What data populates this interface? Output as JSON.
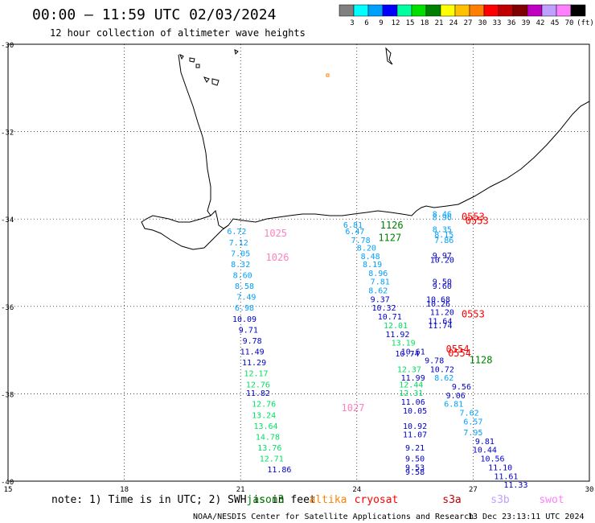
{
  "header": {
    "title": "00:00 – 11:59 UTC 02/03/2024",
    "subtitle": "12 hour collection of altimeter wave heights"
  },
  "legend": {
    "colors": [
      "#808080",
      "#00ffff",
      "#00a0ff",
      "#0000ff",
      "#00ffa0",
      "#00e000",
      "#008000",
      "#ffff00",
      "#ffc000",
      "#ff8000",
      "#ff0000",
      "#c00000",
      "#800000",
      "#c000c0",
      "#c0a0ff",
      "#ff80ff",
      "#000000"
    ],
    "labels": [
      "3",
      "6",
      "9",
      "12",
      "15",
      "18",
      "21",
      "24",
      "27",
      "30",
      "33",
      "36",
      "39",
      "42",
      "45",
      "70",
      "(ft)"
    ]
  },
  "axes": {
    "lat_labels": [
      "-30",
      "-32",
      "-34",
      "-36",
      "-38",
      "-40"
    ],
    "lon_labels": [
      "15",
      "18",
      "21",
      "24",
      "27",
      "30"
    ]
  },
  "tracks": [
    {
      "color": "#00a0ff",
      "points": [
        [
          "6.81",
          23.9,
          -34.2
        ],
        [
          "6.47",
          23.95,
          -34.35
        ],
        [
          "7.78",
          24.1,
          -34.55
        ],
        [
          "8.20",
          24.25,
          -34.72
        ],
        [
          "8.48",
          24.35,
          -34.92
        ],
        [
          "8.19",
          24.4,
          -35.1
        ],
        [
          "8.96",
          24.55,
          -35.3
        ],
        [
          "7.81",
          24.6,
          -35.5
        ],
        [
          "8.62",
          24.55,
          -35.7
        ]
      ]
    },
    {
      "color": "#00a0ff",
      "points": [
        [
          "6.72",
          20.9,
          -34.35
        ],
        [
          "7.12",
          20.95,
          -34.6
        ],
        [
          "7.05",
          21.0,
          -34.85
        ],
        [
          "8.32",
          21.0,
          -35.1
        ],
        [
          "8.60",
          21.05,
          -35.35
        ],
        [
          "8.58",
          21.1,
          -35.6
        ],
        [
          "7.49",
          21.15,
          -35.85
        ],
        [
          "6.98",
          21.1,
          -36.1
        ]
      ]
    },
    {
      "color": "#0000c8",
      "points": [
        [
          "10.09",
          21.1,
          -36.35
        ],
        [
          "9.71",
          21.2,
          -36.6
        ],
        [
          "9.78",
          21.3,
          -36.85
        ],
        [
          "11.49",
          21.3,
          -37.1
        ],
        [
          "11.29",
          21.35,
          -37.35
        ]
      ]
    },
    {
      "color": "#00e060",
      "points": [
        [
          "12.17",
          21.4,
          -37.6
        ],
        [
          "12.76",
          21.45,
          -37.85
        ]
      ]
    },
    {
      "color": "#0000c8",
      "points": [
        [
          "11.82",
          21.45,
          -38.05
        ]
      ]
    },
    {
      "color": "#00e060",
      "points": [
        [
          "12.76",
          21.6,
          -38.3
        ],
        [
          "13.24",
          21.6,
          -38.55
        ],
        [
          "13.64",
          21.65,
          -38.8
        ],
        [
          "14.78",
          21.7,
          -39.05
        ],
        [
          "13.76",
          21.75,
          -39.3
        ],
        [
          "12.71",
          21.8,
          -39.55
        ]
      ]
    },
    {
      "color": "#0000c8",
      "points": [
        [
          "11.86",
          22.0,
          -39.8
        ]
      ]
    },
    {
      "color": "#0000c8",
      "points": [
        [
          "9.37",
          24.6,
          -35.9
        ],
        [
          "10.32",
          24.7,
          -36.1
        ],
        [
          "10.71",
          24.85,
          -36.3
        ]
      ]
    },
    {
      "color": "#00e060",
      "points": [
        [
          "12.01",
          25.0,
          -36.5
        ]
      ]
    },
    {
      "color": "#0000c8",
      "points": [
        [
          "11.92",
          25.05,
          -36.7
        ]
      ]
    },
    {
      "color": "#00e060",
      "points": [
        [
          "13.19",
          25.2,
          -36.9
        ]
      ]
    },
    {
      "color": "#0000c8",
      "points": [
        [
          "10.74",
          25.3,
          -37.15
        ]
      ]
    },
    {
      "color": "#00e060",
      "points": [
        [
          "12.37",
          25.35,
          -37.5
        ],
        [
          "12.44",
          25.4,
          -37.85
        ],
        [
          "12.31",
          25.4,
          -38.05
        ]
      ]
    },
    {
      "color": "#0000c8",
      "points": [
        [
          "11.99",
          25.45,
          -37.7
        ],
        [
          "11.06",
          25.45,
          -38.25
        ],
        [
          "10.05",
          25.5,
          -38.45
        ]
      ]
    },
    {
      "color": "#0000c8",
      "points": [
        [
          "10.92",
          25.5,
          -38.8
        ],
        [
          "11.07",
          25.5,
          -39.0
        ],
        [
          "9.21",
          25.5,
          -39.3
        ],
        [
          "9.50",
          25.5,
          -39.55
        ],
        [
          "9.53",
          25.5,
          -39.75
        ],
        [
          "9.58",
          25.5,
          -39.85
        ]
      ]
    },
    {
      "color": "#00a0ff",
      "points": [
        [
          "8.46",
          26.2,
          -33.95
        ],
        [
          "8.96",
          26.2,
          -34.02
        ],
        [
          "8.35",
          26.2,
          -34.3
        ],
        [
          "8.15",
          26.25,
          -34.42
        ],
        [
          "7.86",
          26.25,
          -34.55
        ]
      ]
    },
    {
      "color": "#0000c8",
      "points": [
        [
          "9.97",
          26.2,
          -34.9
        ],
        [
          "10.20",
          26.2,
          -35.0
        ],
        [
          "9.50",
          26.2,
          -35.5
        ],
        [
          "9.60",
          26.2,
          -35.6
        ]
      ]
    },
    {
      "color": "#0000c8",
      "points": [
        [
          "10.68",
          26.1,
          -35.9
        ],
        [
          "10.26",
          26.1,
          -36.0
        ],
        [
          "11.20",
          26.2,
          -36.2
        ],
        [
          "11.64",
          26.15,
          -36.4
        ],
        [
          "11.74",
          26.15,
          -36.5
        ]
      ]
    },
    {
      "color": "#0000c8",
      "points": [
        [
          "10.61",
          25.45,
          -37.1
        ],
        [
          "9.78",
          26.0,
          -37.3
        ],
        [
          "10.72",
          26.2,
          -37.5
        ]
      ]
    },
    {
      "color": "#00a0ff",
      "points": [
        [
          "8.62",
          26.25,
          -37.7
        ]
      ]
    },
    {
      "color": "#0000c8",
      "points": [
        [
          "9.56",
          26.7,
          -37.9
        ],
        [
          "9.06",
          26.55,
          -38.1
        ]
      ]
    },
    {
      "color": "#00a0ff",
      "points": [
        [
          "6.81",
          26.5,
          -38.3
        ],
        [
          "7.62",
          26.9,
          -38.5
        ],
        [
          "6.57",
          27.0,
          -38.7
        ],
        [
          "7.95",
          27.0,
          -38.95
        ]
      ]
    },
    {
      "color": "#0000c8",
      "points": [
        [
          "9.81",
          27.3,
          -39.15
        ],
        [
          "10.44",
          27.3,
          -39.35
        ],
        [
          "10.56",
          27.5,
          -39.55
        ],
        [
          "11.10",
          27.7,
          -39.75
        ],
        [
          "11.61",
          27.85,
          -39.95
        ],
        [
          "11.33",
          28.1,
          -40.15
        ]
      ]
    }
  ],
  "pass_times": [
    {
      "text": "1025",
      "color": "#ff80c0",
      "lon": 21.9,
      "lat": -34.4
    },
    {
      "text": "1026",
      "color": "#ff80c0",
      "lon": 21.95,
      "lat": -34.95
    },
    {
      "text": "1027",
      "color": "#ff80c0",
      "lon": 23.9,
      "lat": -38.4
    },
    {
      "text": "1126",
      "color": "#008000",
      "lon": 24.9,
      "lat": -34.22
    },
    {
      "text": "1127",
      "color": "#008000",
      "lon": 24.85,
      "lat": -34.5
    },
    {
      "text": "1128",
      "color": "#008000",
      "lon": 27.2,
      "lat": -37.3
    },
    {
      "text": "0553",
      "color": "#ff0000",
      "lon": 27.0,
      "lat": -34.02
    },
    {
      "text": "0553",
      "color": "#ff0000",
      "lon": 27.1,
      "lat": -34.12
    },
    {
      "text": "0553",
      "color": "#ff0000",
      "lon": 27.0,
      "lat": -36.25
    },
    {
      "text": "0554",
      "color": "#ff0000",
      "lon": 26.6,
      "lat": -37.05
    },
    {
      "text": "0554",
      "color": "#ff0000",
      "lon": 26.65,
      "lat": -37.15
    }
  ],
  "footer": {
    "note_text": "note: 1) Time is in UTC; 2) SWH is in feet",
    "satellites": [
      {
        "name": "jason3",
        "color": "#008000"
      },
      {
        "name": "altika",
        "color": "#ff8000"
      },
      {
        "name": "cryosat",
        "color": "#ff0000"
      },
      {
        "name": "s3a",
        "color": "#c00000"
      },
      {
        "name": "s3b",
        "color": "#c0a0ff"
      },
      {
        "name": "swot",
        "color": "#ff80ff"
      }
    ],
    "credit": "NOAA/NESDIS Center for Satellite Applications and Research",
    "timestamp": "13 Dec 23:13:11 UTC 2024"
  }
}
